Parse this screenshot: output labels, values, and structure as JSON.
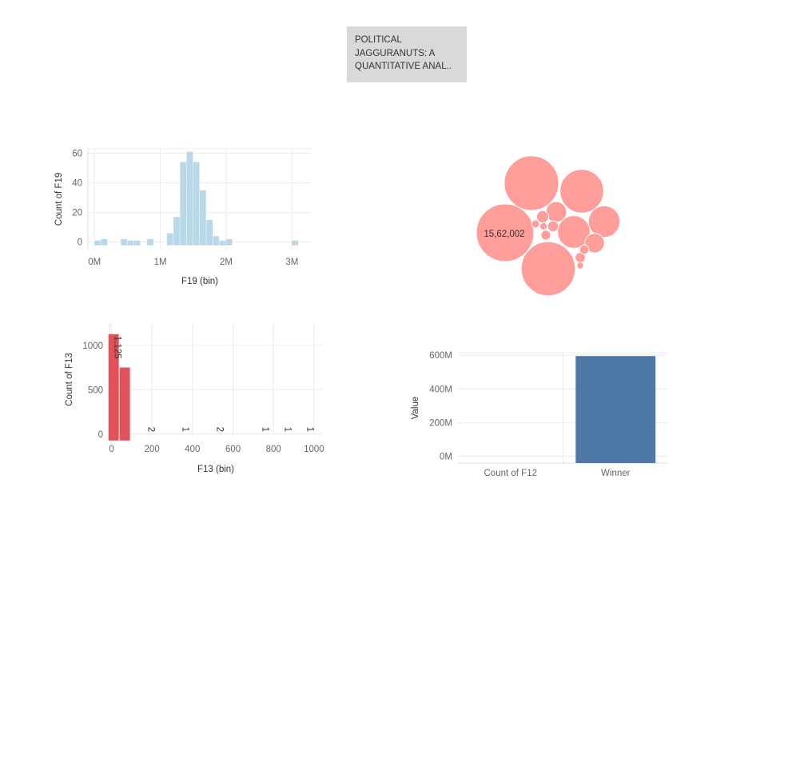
{
  "dashboard": {
    "title_lines": [
      "POLITICAL",
      "JAGGURANUTS: A",
      "QUANTITATIVE ANAL.."
    ]
  },
  "colors": {
    "hist_f19": "#b9d9ea",
    "hist_f13": "#e0525a",
    "bubbles": "#ff9d9a",
    "bar_value": "#4e79a7"
  },
  "chart_data": [
    {
      "type": "bar",
      "variant": "histogram",
      "xlabel": "F19 (bin)",
      "ylabel": "Count of F19",
      "x_ticks": [
        {
          "label": "0M",
          "value": 0
        },
        {
          "label": "1M",
          "value": 1000000
        },
        {
          "label": "2M",
          "value": 2000000
        },
        {
          "label": "3M",
          "value": 3000000
        }
      ],
      "y_ticks": [
        {
          "label": "0",
          "value": 0
        },
        {
          "label": "20",
          "value": 20
        },
        {
          "label": "40",
          "value": 40
        },
        {
          "label": "60",
          "value": 60
        }
      ],
      "bin_width": 100000,
      "xlim": [
        -100000,
        3300000
      ],
      "ylim": [
        -5,
        63
      ],
      "bins": [
        {
          "start": 0,
          "count": 1
        },
        {
          "start": 100000,
          "count": 2
        },
        {
          "start": 200000,
          "count": 0
        },
        {
          "start": 300000,
          "count": 0
        },
        {
          "start": 400000,
          "count": 2
        },
        {
          "start": 500000,
          "count": 1
        },
        {
          "start": 600000,
          "count": 1
        },
        {
          "start": 700000,
          "count": 0
        },
        {
          "start": 800000,
          "count": 2
        },
        {
          "start": 900000,
          "count": 0
        },
        {
          "start": 1000000,
          "count": 0
        },
        {
          "start": 1100000,
          "count": 6
        },
        {
          "start": 1200000,
          "count": 17
        },
        {
          "start": 1300000,
          "count": 54
        },
        {
          "start": 1400000,
          "count": 61
        },
        {
          "start": 1500000,
          "count": 54
        },
        {
          "start": 1600000,
          "count": 35
        },
        {
          "start": 1700000,
          "count": 15
        },
        {
          "start": 1800000,
          "count": 4
        },
        {
          "start": 1900000,
          "count": 1
        },
        {
          "start": 2000000,
          "count": 2
        },
        {
          "start": 3000000,
          "count": 1
        }
      ]
    },
    {
      "type": "scatter",
      "variant": "packed-bubbles",
      "annotation": "15,62,002",
      "bubbles": [
        {
          "size": 1562002,
          "label": "15,62,002"
        },
        {
          "size": 1400000
        },
        {
          "size": 1380000
        },
        {
          "size": 900000
        },
        {
          "size": 500000
        },
        {
          "size": 470000
        },
        {
          "size": 200000
        },
        {
          "size": 180000
        },
        {
          "size": 70000
        },
        {
          "size": 55000
        },
        {
          "size": 50000
        },
        {
          "size": 45000
        },
        {
          "size": 40000
        },
        {
          "size": 30000
        },
        {
          "size": 25000
        },
        {
          "size": 22000
        }
      ]
    },
    {
      "type": "bar",
      "variant": "histogram",
      "xlabel": "F13 (bin)",
      "ylabel": "Count of F13",
      "x_ticks": [
        {
          "label": "0",
          "value": 0
        },
        {
          "label": "200",
          "value": 200
        },
        {
          "label": "400",
          "value": 400
        },
        {
          "label": "600",
          "value": 600
        },
        {
          "label": "800",
          "value": 800
        },
        {
          "label": "1000",
          "value": 1000
        }
      ],
      "y_ticks": [
        {
          "label": "0",
          "value": 0
        },
        {
          "label": "500",
          "value": 500
        },
        {
          "label": "1000",
          "value": 1000
        }
      ],
      "bin_width": 55,
      "xlim": [
        -10,
        1040
      ],
      "ylim": [
        -20,
        1250
      ],
      "bins": [
        {
          "start": -15,
          "count": 1125,
          "label": "1,125"
        },
        {
          "start": 40,
          "count": 750,
          "label": ""
        },
        {
          "start": 150,
          "count": 2,
          "label": "2"
        },
        {
          "start": 320,
          "count": 1,
          "label": "1"
        },
        {
          "start": 490,
          "count": 2,
          "label": "2"
        },
        {
          "start": 715,
          "count": 1,
          "label": "1"
        },
        {
          "start": 825,
          "count": 1,
          "label": "1"
        },
        {
          "start": 935,
          "count": 1,
          "label": "1"
        }
      ]
    },
    {
      "type": "bar",
      "categories": [
        "Count of F12",
        "Winner"
      ],
      "values": [
        0,
        595000000
      ],
      "ylabel": "Value",
      "ylim": [
        -40000000,
        615000000
      ],
      "y_ticks": [
        {
          "label": "0M",
          "value": 0
        },
        {
          "label": "200M",
          "value": 200000000
        },
        {
          "label": "400M",
          "value": 400000000
        },
        {
          "label": "600M",
          "value": 600000000
        }
      ]
    }
  ]
}
